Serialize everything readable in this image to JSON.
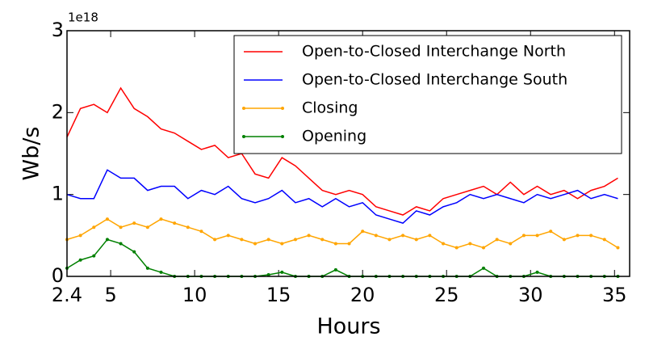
{
  "chart_data": {
    "type": "line",
    "xlabel": "Hours",
    "ylabel": "Wb/s",
    "y_offset_label": "1e18",
    "x": [
      2.4,
      3.2,
      4.0,
      4.8,
      5.6,
      6.4,
      7.2,
      8.0,
      8.8,
      9.6,
      10.4,
      11.2,
      12.0,
      12.8,
      13.6,
      14.4,
      15.2,
      16.0,
      16.8,
      17.6,
      18.4,
      19.2,
      20.0,
      20.8,
      21.6,
      22.4,
      23.2,
      24.0,
      24.8,
      25.6,
      26.4,
      27.2,
      28.0,
      28.8,
      29.6,
      30.4,
      31.2,
      32.0,
      32.8,
      33.6,
      34.4,
      35.2
    ],
    "series": [
      {
        "name": "Open-to-Closed Interchange North",
        "color": "#ff0000",
        "markers": false,
        "values": [
          1.7,
          2.05,
          2.1,
          2.0,
          2.3,
          2.05,
          1.95,
          1.8,
          1.75,
          1.65,
          1.55,
          1.6,
          1.45,
          1.5,
          1.25,
          1.2,
          1.45,
          1.35,
          1.2,
          1.05,
          1.0,
          1.05,
          1.0,
          0.85,
          0.8,
          0.75,
          0.85,
          0.8,
          0.95,
          1.0,
          1.05,
          1.1,
          1.0,
          1.15,
          1.0,
          1.1,
          1.0,
          1.05,
          0.95,
          1.05,
          1.1,
          1.2
        ]
      },
      {
        "name": "Open-to-Closed Interchange South",
        "color": "#0000ff",
        "markers": false,
        "values": [
          1.0,
          0.95,
          0.95,
          1.3,
          1.2,
          1.2,
          1.05,
          1.1,
          1.1,
          0.95,
          1.05,
          1.0,
          1.1,
          0.95,
          0.9,
          0.95,
          1.05,
          0.9,
          0.95,
          0.85,
          0.95,
          0.85,
          0.9,
          0.75,
          0.7,
          0.65,
          0.8,
          0.75,
          0.85,
          0.9,
          1.0,
          0.95,
          1.0,
          0.95,
          0.9,
          1.0,
          0.95,
          1.0,
          1.05,
          0.95,
          1.0,
          0.95
        ]
      },
      {
        "name": "Closing",
        "color": "#ffa500",
        "markers": true,
        "values": [
          0.45,
          0.5,
          0.6,
          0.7,
          0.6,
          0.65,
          0.6,
          0.7,
          0.65,
          0.6,
          0.55,
          0.45,
          0.5,
          0.45,
          0.4,
          0.45,
          0.4,
          0.45,
          0.5,
          0.45,
          0.4,
          0.4,
          0.55,
          0.5,
          0.45,
          0.5,
          0.45,
          0.5,
          0.4,
          0.35,
          0.4,
          0.35,
          0.45,
          0.4,
          0.5,
          0.5,
          0.55,
          0.45,
          0.5,
          0.5,
          0.45,
          0.35
        ]
      },
      {
        "name": "Opening",
        "color": "#008000",
        "markers": true,
        "values": [
          0.1,
          0.2,
          0.25,
          0.45,
          0.4,
          0.3,
          0.1,
          0.05,
          0,
          0,
          0,
          0,
          0,
          0,
          0,
          0.02,
          0.05,
          0,
          0,
          0,
          0.08,
          0,
          0,
          0,
          0,
          0,
          0,
          0,
          0,
          0,
          0,
          0.1,
          0,
          0,
          0,
          0.05,
          0,
          0,
          0,
          0,
          0,
          0
        ]
      }
    ],
    "xlim": [
      2.4,
      35.9
    ],
    "ylim": [
      0,
      3
    ],
    "xticks": [
      2.4,
      5,
      10,
      15,
      20,
      25,
      30,
      35
    ],
    "yticks": [
      0,
      1,
      2,
      3
    ],
    "legend": "upper right",
    "grid": false
  }
}
